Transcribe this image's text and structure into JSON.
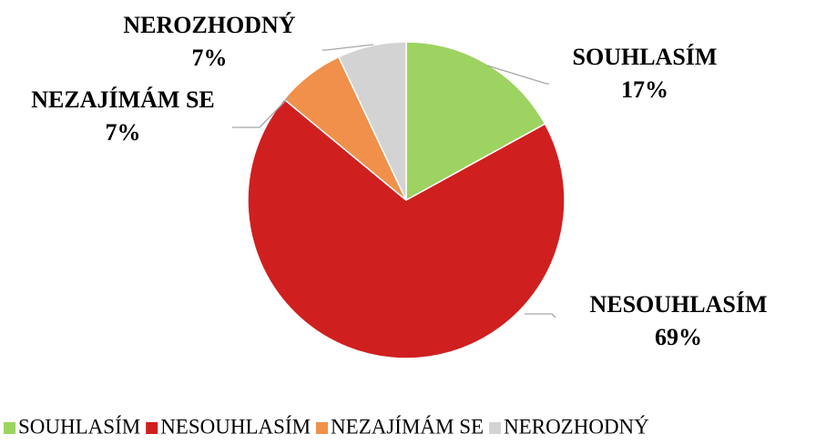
{
  "chart_data": {
    "type": "pie",
    "categories": [
      "SOUHLASÍM",
      "NESOUHLASÍM",
      "NEZAJÍMÁM SE",
      "NEROZHODNÝ"
    ],
    "values": [
      17,
      69,
      7,
      7
    ],
    "value_labels": [
      "17%",
      "69%",
      "7%",
      "7%"
    ],
    "colors": [
      "#9dd360",
      "#d01f1f",
      "#f0904a",
      "#d3d3d3"
    ],
    "legend": "bottom"
  }
}
